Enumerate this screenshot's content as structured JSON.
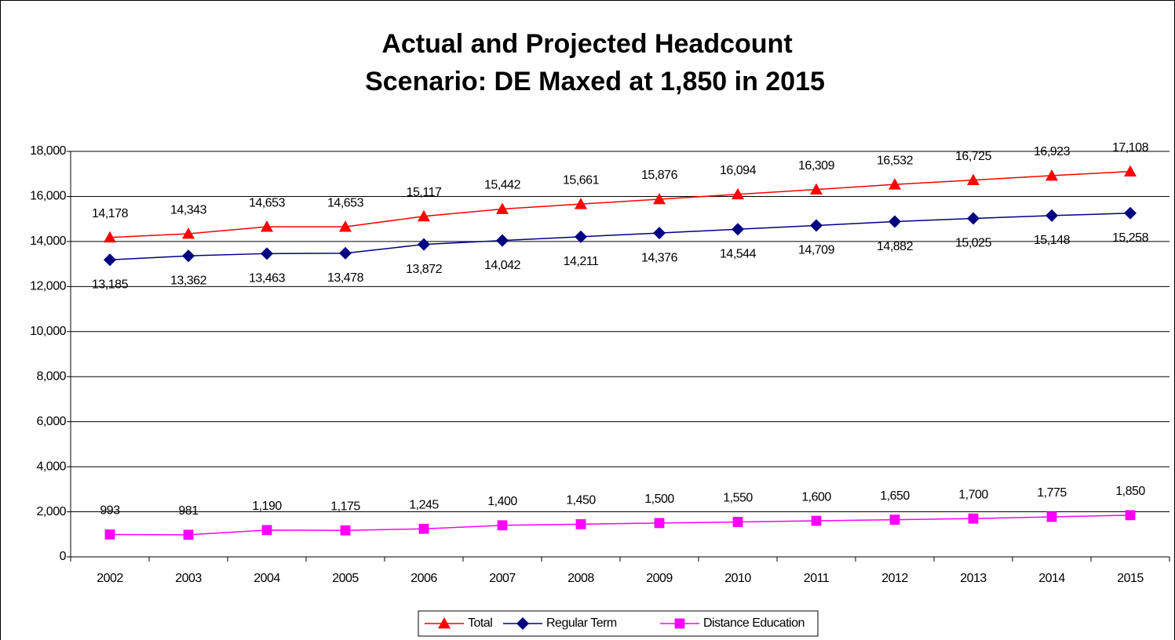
{
  "chart_data": {
    "type": "line",
    "title": "Actual and Projected Headcount",
    "subtitle": "Scenario: DE Maxed at 1,850 in 2015",
    "categories": [
      "2002",
      "2003",
      "2004",
      "2005",
      "2006",
      "2007",
      "2008",
      "2009",
      "2010",
      "2011",
      "2012",
      "2013",
      "2014",
      "2015"
    ],
    "series": [
      {
        "name": "Total",
        "color": "#ff0000",
        "marker": "triangle",
        "label_position": "above",
        "values": [
          14178,
          14343,
          14653,
          14653,
          15117,
          15442,
          15661,
          15876,
          16094,
          16309,
          16532,
          16725,
          16923,
          17108
        ],
        "value_labels": [
          "14,178",
          "14,343",
          "14,653",
          "14,653",
          "15,117",
          "15,442",
          "15,661",
          "15,876",
          "16,094",
          "16,309",
          "16,532",
          "16,725",
          "16,923",
          "17,108"
        ]
      },
      {
        "name": "Regular Term",
        "color": "#000080",
        "marker": "diamond",
        "label_position": "below",
        "values": [
          13185,
          13362,
          13463,
          13478,
          13872,
          14042,
          14211,
          14376,
          14544,
          14709,
          14882,
          15025,
          15148,
          15258
        ],
        "value_labels": [
          "13,185",
          "13,362",
          "13,463",
          "13,478",
          "13,872",
          "14,042",
          "14,211",
          "14,376",
          "14,544",
          "14,709",
          "14,882",
          "15,025",
          "15,148",
          "15,258"
        ]
      },
      {
        "name": "Distance Education",
        "color": "#ff00ff",
        "marker": "square",
        "label_position": "above",
        "values": [
          993,
          981,
          1190,
          1175,
          1245,
          1400,
          1450,
          1500,
          1550,
          1600,
          1650,
          1700,
          1775,
          1850
        ],
        "value_labels": [
          "993",
          "981",
          "1,190",
          "1,175",
          "1,245",
          "1,400",
          "1,450",
          "1,500",
          "1,550",
          "1,600",
          "1,650",
          "1,700",
          "1,775",
          "1,850"
        ]
      }
    ],
    "ylim": [
      0,
      18000
    ],
    "yticks": [
      0,
      {
        "value": 2000,
        "label": "2,000"
      },
      {
        "value": 4000,
        "label": "4,000"
      },
      {
        "value": 6000,
        "label": "6,000"
      },
      {
        "value": 8000,
        "label": "8,000"
      },
      {
        "value": 10000,
        "label": "10,000"
      },
      {
        "value": 12000,
        "label": "12,000"
      },
      {
        "value": 14000,
        "label": "14,000"
      },
      {
        "value": 16000,
        "label": "16,000"
      },
      {
        "value": 18000,
        "label": "18,000"
      }
    ],
    "grid": true,
    "legend": "bottom"
  }
}
